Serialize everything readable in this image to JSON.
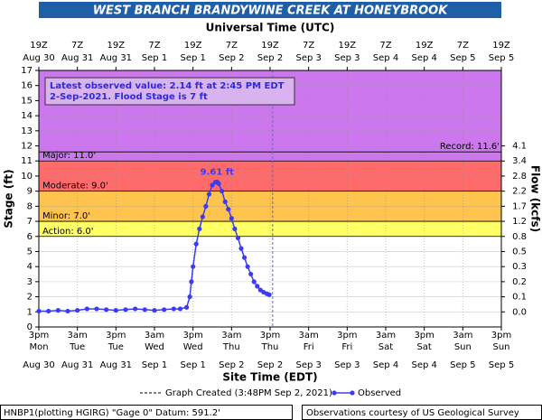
{
  "chart_data": {
    "type": "line",
    "title": "WEST BRANCH BRANDYWINE CREEK AT HONEYBROOK",
    "top_axis_label": "Universal Time (UTC)",
    "x_axis_label": "Site Time (EDT)",
    "y_axis_label": "Stage (ft)",
    "y2_axis_label": "Flow (kcfs)",
    "xlim": [
      0,
      144
    ],
    "xticks": [
      {
        "value": 0,
        "label": "3pm",
        "day": "Mon",
        "date": "Aug 30"
      },
      {
        "value": 12,
        "label": "3am",
        "day": "Tue",
        "date": "Aug 31"
      },
      {
        "value": 24,
        "label": "3pm",
        "day": "Tue",
        "date": "Aug 31"
      },
      {
        "value": 36,
        "label": "3am",
        "day": "Wed",
        "date": "Sep 1"
      },
      {
        "value": 48,
        "label": "3pm",
        "day": "Wed",
        "date": "Sep 1"
      },
      {
        "value": 60,
        "label": "3am",
        "day": "Thu",
        "date": "Sep 2"
      },
      {
        "value": 72,
        "label": "3pm",
        "day": "Thu",
        "date": "Sep 2"
      },
      {
        "value": 84,
        "label": "3am",
        "day": "Fri",
        "date": "Sep 3"
      },
      {
        "value": 96,
        "label": "3pm",
        "day": "Fri",
        "date": "Sep 3"
      },
      {
        "value": 108,
        "label": "3am",
        "day": "Sat",
        "date": "Sep 4"
      },
      {
        "value": 120,
        "label": "3pm",
        "day": "Sat",
        "date": "Sep 4"
      },
      {
        "value": 132,
        "label": "3am",
        "day": "Sun",
        "date": "Sep 5"
      },
      {
        "value": 144,
        "label": "3pm",
        "day": "Sun",
        "date": "Sep 5"
      }
    ],
    "top_xticks": [
      {
        "value": 0,
        "label": "19Z",
        "date": "Aug 30"
      },
      {
        "value": 12,
        "label": "7Z",
        "date": "Aug 31"
      },
      {
        "value": 24,
        "label": "19Z",
        "date": "Aug 31"
      },
      {
        "value": 36,
        "label": "7Z",
        "date": "Sep 1"
      },
      {
        "value": 48,
        "label": "19Z",
        "date": "Sep 1"
      },
      {
        "value": 60,
        "label": "7Z",
        "date": "Sep 2"
      },
      {
        "value": 72,
        "label": "19Z",
        "date": "Sep 2"
      },
      {
        "value": 84,
        "label": "7Z",
        "date": "Sep 3"
      },
      {
        "value": 96,
        "label": "19Z",
        "date": "Sep 3"
      },
      {
        "value": 108,
        "label": "7Z",
        "date": "Sep 4"
      },
      {
        "value": 120,
        "label": "19Z",
        "date": "Sep 4"
      },
      {
        "value": 132,
        "label": "7Z",
        "date": "Sep 5"
      },
      {
        "value": 144,
        "label": "19Z",
        "date": "Sep 5"
      }
    ],
    "ylim": [
      0,
      17
    ],
    "yticks": [
      0,
      1,
      2,
      3,
      4,
      5,
      6,
      7,
      8,
      9,
      10,
      11,
      12,
      13,
      14,
      15,
      16,
      17
    ],
    "y2lim": [
      0,
      17
    ],
    "y2ticks": [
      {
        "value": 1,
        "label": "0.0"
      },
      {
        "value": 2,
        "label": "0.1"
      },
      {
        "value": 3,
        "label": "0.2"
      },
      {
        "value": 4,
        "label": "0.3"
      },
      {
        "value": 5,
        "label": "0.5"
      },
      {
        "value": 6,
        "label": "0.8"
      },
      {
        "value": 7,
        "label": "1.2"
      },
      {
        "value": 8,
        "label": "1.7"
      },
      {
        "value": 9,
        "label": "2.2"
      },
      {
        "value": 10,
        "label": "2.8"
      },
      {
        "value": 11,
        "label": "3.4"
      },
      {
        "value": 12,
        "label": "4.1"
      }
    ],
    "grid": true,
    "flood_categories": [
      {
        "label": "Action: 6.0'",
        "stage": 6,
        "color": "#ffff66"
      },
      {
        "label": "Minor: 7.0'",
        "stage": 7,
        "color": "#ffc44d"
      },
      {
        "label": "Moderate: 9.0'",
        "stage": 9,
        "color": "#ff6b6b"
      },
      {
        "label": "Major: 11.0'",
        "stage": 11,
        "color": "#cc77ee"
      }
    ],
    "record": {
      "label": "Record: 11.6'",
      "stage": 11.6
    },
    "graph_created": {
      "label": "Graph Created (3:48PM Sep 2, 2021)",
      "x": 72.8
    },
    "annotation": [
      "Latest observed value: 2.14 ft at 2:45 PM EDT",
      "2-Sep-2021.  Flood Stage is 7 ft"
    ],
    "peak_label": "9.61 ft",
    "series": [
      {
        "name": "Observed",
        "color": "#3b3bf5",
        "x": [
          0,
          3,
          6,
          9,
          12,
          15,
          18,
          21,
          24,
          27,
          30,
          33,
          36,
          39,
          42,
          44,
          46,
          47,
          47.5,
          48,
          49,
          50,
          51,
          52,
          53,
          54,
          55,
          55.5,
          56,
          57,
          58,
          59,
          60,
          61,
          62,
          63,
          64,
          65,
          66,
          67,
          68,
          69,
          70,
          71,
          71.75
        ],
        "values": [
          1.05,
          1.05,
          1.1,
          1.05,
          1.1,
          1.2,
          1.2,
          1.15,
          1.1,
          1.15,
          1.2,
          1.15,
          1.1,
          1.15,
          1.2,
          1.2,
          1.3,
          2.0,
          3.0,
          4.0,
          5.5,
          6.5,
          7.3,
          8.0,
          8.8,
          9.4,
          9.6,
          9.61,
          9.5,
          9.0,
          8.3,
          7.8,
          7.2,
          6.5,
          5.9,
          5.2,
          4.6,
          4.0,
          3.5,
          3.0,
          2.7,
          2.45,
          2.3,
          2.2,
          2.14
        ]
      }
    ],
    "footer_left": "HNBP1(plotting HGIRG) \"Gage 0\" Datum: 591.2'",
    "footer_right": "Observations courtesy of US Geological Survey"
  }
}
